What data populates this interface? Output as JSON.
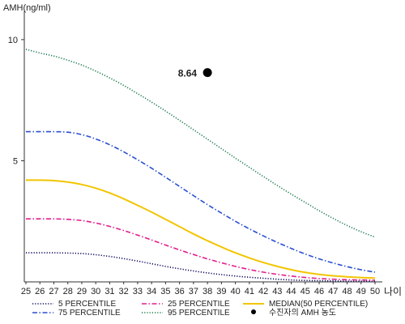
{
  "chart_data": {
    "type": "line",
    "title": "",
    "ylabel": "AMH(ng/ml)",
    "xlabel": "나이",
    "xlim": [
      25,
      50
    ],
    "ylim": [
      0,
      11
    ],
    "x_ticks": [
      25,
      26,
      27,
      28,
      29,
      30,
      31,
      32,
      33,
      34,
      35,
      36,
      37,
      38,
      39,
      40,
      41,
      42,
      43,
      44,
      45,
      46,
      47,
      48,
      49,
      50
    ],
    "y_ticks": [
      5,
      10
    ],
    "legend_position": "bottom",
    "legend_columns": 3,
    "x": [
      25,
      26,
      27,
      28,
      29,
      30,
      31,
      32,
      33,
      34,
      35,
      36,
      37,
      38,
      39,
      40,
      41,
      42,
      43,
      44,
      45,
      46,
      47,
      48,
      49,
      50
    ],
    "series": [
      {
        "name": "5 PERCENTILE",
        "color": "#0a0a5a",
        "dash": "dotted",
        "values": [
          1.2,
          1.2,
          1.2,
          1.19,
          1.17,
          1.12,
          1.05,
          0.96,
          0.86,
          0.75,
          0.64,
          0.54,
          0.45,
          0.37,
          0.3,
          0.24,
          0.19,
          0.15,
          0.11,
          0.08,
          0.06,
          0.05,
          0.04,
          0.03,
          0.03,
          0.02
        ]
      },
      {
        "name": "25 PERCENTILE",
        "color": "#e01e8c",
        "dash": "dashdot",
        "values": [
          2.6,
          2.6,
          2.6,
          2.58,
          2.53,
          2.43,
          2.29,
          2.12,
          1.93,
          1.73,
          1.52,
          1.32,
          1.13,
          0.95,
          0.79,
          0.64,
          0.51,
          0.4,
          0.31,
          0.24,
          0.18,
          0.14,
          0.11,
          0.09,
          0.08,
          0.07
        ]
      },
      {
        "name": "MEDIAN(50 PERCENTILE)",
        "color": "#f2c500",
        "dash": "solid",
        "values": [
          4.2,
          4.2,
          4.18,
          4.12,
          4.02,
          3.87,
          3.67,
          3.43,
          3.16,
          2.88,
          2.58,
          2.28,
          1.98,
          1.7,
          1.44,
          1.2,
          0.99,
          0.8,
          0.64,
          0.5,
          0.39,
          0.31,
          0.25,
          0.21,
          0.18,
          0.16
        ]
      },
      {
        "name": "75 PERCENTILE",
        "color": "#2a4fd0",
        "dash": "dashdot",
        "values": [
          6.2,
          6.2,
          6.2,
          6.18,
          6.08,
          5.9,
          5.66,
          5.37,
          5.04,
          4.69,
          4.32,
          3.94,
          3.56,
          3.19,
          2.84,
          2.5,
          2.19,
          1.9,
          1.63,
          1.38,
          1.15,
          0.95,
          0.78,
          0.63,
          0.5,
          0.4
        ]
      },
      {
        "name": "95 PERCENTILE",
        "color": "#1a7a4a",
        "dash": "dotted",
        "values": [
          9.6,
          9.45,
          9.32,
          9.15,
          8.95,
          8.7,
          8.42,
          8.11,
          7.77,
          7.42,
          7.05,
          6.67,
          6.28,
          5.89,
          5.5,
          5.11,
          4.73,
          4.35,
          3.98,
          3.62,
          3.28,
          2.94,
          2.62,
          2.33,
          2.07,
          1.85
        ]
      }
    ],
    "marker": {
      "name": "수진자의 AMH 농도",
      "x": 38,
      "y": 8.64,
      "label": "8.64",
      "color": "#000000"
    }
  }
}
